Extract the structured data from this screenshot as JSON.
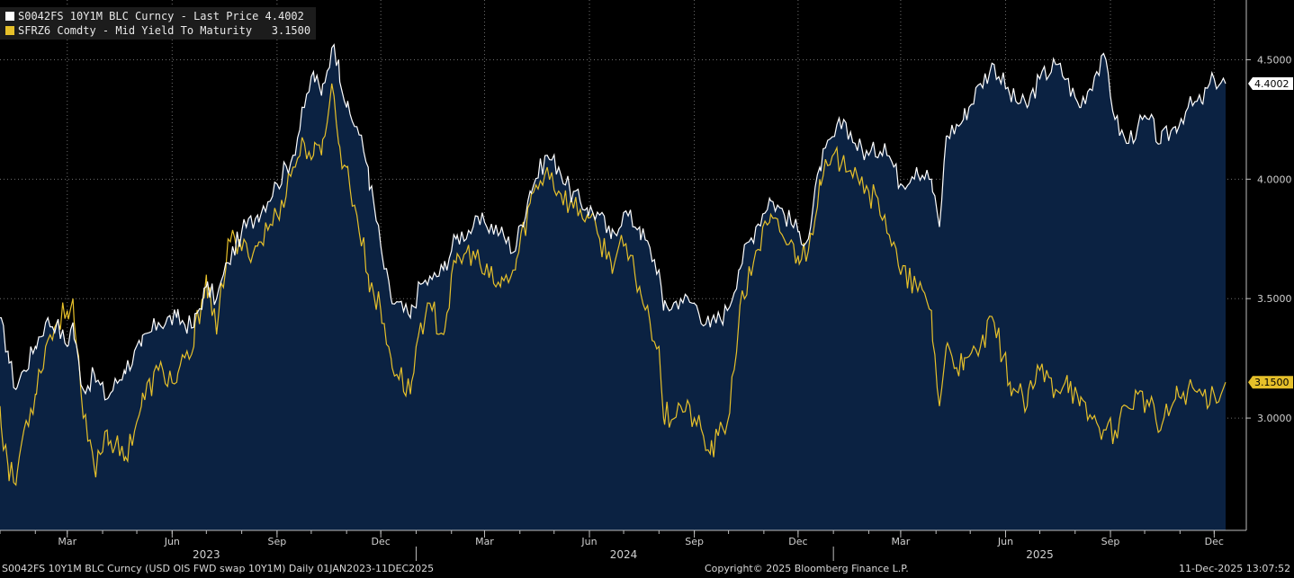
{
  "legend": {
    "series1": "S0042FS 10Y1M BLC Curncy - Last Price 4.4002",
    "series2": "SFRZ6 Comdty - Mid Yield To Maturity   3.1500"
  },
  "footer": {
    "left": "S0042FS 10Y1M BLC Curncy (USD OIS FWD swap 10Y1M) Daily 01JAN2023-11DEC2025",
    "center": "Copyright© 2025 Bloomberg Finance L.P.",
    "right": "11-Dec-2025 13:07:52"
  },
  "colors": {
    "white_series": "#ffffff",
    "yellow_series": "#e6c02a",
    "area": "#0b2242",
    "background": "#000000",
    "grid": "#6e6e6e"
  },
  "chart_data": {
    "type": "line",
    "ylim": [
      2.53,
      4.75
    ],
    "y_ticks": [
      "4.5000",
      "4.0000",
      "3.5000",
      "3.0000"
    ],
    "y_tick_values": [
      4.5,
      4.0,
      3.5,
      3.0
    ],
    "x_ticks": [
      {
        "label": "Mar",
        "date": "2023-03-01"
      },
      {
        "label": "Jun",
        "date": "2023-06-01"
      },
      {
        "label": "Sep",
        "date": "2023-09-01"
      },
      {
        "label": "Dec",
        "date": "2023-12-01"
      },
      {
        "label": "Mar",
        "date": "2024-03-01"
      },
      {
        "label": "Jun",
        "date": "2024-06-01"
      },
      {
        "label": "Sep",
        "date": "2024-09-01"
      },
      {
        "label": "Dec",
        "date": "2024-12-01"
      },
      {
        "label": "Mar",
        "date": "2025-03-01"
      },
      {
        "label": "Jun",
        "date": "2025-06-01"
      },
      {
        "label": "Sep",
        "date": "2025-09-01"
      },
      {
        "label": "Dec",
        "date": "2025-12-01"
      }
    ],
    "years": [
      {
        "label": "2023",
        "date": "2023-07-01"
      },
      {
        "label": "2024",
        "date": "2024-07-01"
      },
      {
        "label": "2025",
        "date": "2025-07-01"
      }
    ],
    "year_dividers": [
      "2024-01-01",
      "2025-01-01"
    ],
    "x_range": [
      "2023-01-01",
      "2025-12-11"
    ],
    "series": [
      {
        "name": "S0042FS 10Y1M BLC Curncy",
        "last_label": "4.4002",
        "points": [
          [
            "2023-01-01",
            3.42
          ],
          [
            "2023-01-08",
            3.28
          ],
          [
            "2023-01-15",
            3.12
          ],
          [
            "2023-01-22",
            3.2
          ],
          [
            "2023-02-01",
            3.3
          ],
          [
            "2023-02-10",
            3.4
          ],
          [
            "2023-02-20",
            3.4
          ],
          [
            "2023-03-01",
            3.3
          ],
          [
            "2023-03-06",
            3.4
          ],
          [
            "2023-03-15",
            3.12
          ],
          [
            "2023-03-25",
            3.18
          ],
          [
            "2023-04-05",
            3.08
          ],
          [
            "2023-04-20",
            3.2
          ],
          [
            "2023-05-05",
            3.3
          ],
          [
            "2023-05-20",
            3.4
          ],
          [
            "2023-06-05",
            3.42
          ],
          [
            "2023-06-20",
            3.38
          ],
          [
            "2023-07-01",
            3.55
          ],
          [
            "2023-07-10",
            3.5
          ],
          [
            "2023-07-20",
            3.65
          ],
          [
            "2023-08-01",
            3.78
          ],
          [
            "2023-08-15",
            3.85
          ],
          [
            "2023-09-01",
            3.98
          ],
          [
            "2023-09-15",
            4.1
          ],
          [
            "2023-09-25",
            4.3
          ],
          [
            "2023-10-03",
            4.45
          ],
          [
            "2023-10-10",
            4.35
          ],
          [
            "2023-10-19",
            4.55
          ],
          [
            "2023-10-25",
            4.5
          ],
          [
            "2023-11-01",
            4.3
          ],
          [
            "2023-11-10",
            4.22
          ],
          [
            "2023-11-20",
            4.05
          ],
          [
            "2023-12-01",
            3.72
          ],
          [
            "2023-12-10",
            3.5
          ],
          [
            "2023-12-27",
            3.42
          ],
          [
            "2024-01-05",
            3.56
          ],
          [
            "2024-01-15",
            3.58
          ],
          [
            "2024-01-25",
            3.62
          ],
          [
            "2024-02-05",
            3.75
          ],
          [
            "2024-02-20",
            3.8
          ],
          [
            "2024-03-01",
            3.82
          ],
          [
            "2024-03-15",
            3.78
          ],
          [
            "2024-03-28",
            3.7
          ],
          [
            "2024-04-10",
            3.95
          ],
          [
            "2024-04-25",
            4.1
          ],
          [
            "2024-05-05",
            4.05
          ],
          [
            "2024-05-15",
            3.95
          ],
          [
            "2024-05-30",
            3.88
          ],
          [
            "2024-06-10",
            3.85
          ],
          [
            "2024-06-20",
            3.75
          ],
          [
            "2024-07-01",
            3.86
          ],
          [
            "2024-07-15",
            3.8
          ],
          [
            "2024-08-01",
            3.62
          ],
          [
            "2024-08-05",
            3.45
          ],
          [
            "2024-08-20",
            3.5
          ],
          [
            "2024-09-01",
            3.48
          ],
          [
            "2024-09-15",
            3.38
          ],
          [
            "2024-09-30",
            3.45
          ],
          [
            "2024-10-10",
            3.62
          ],
          [
            "2024-10-25",
            3.8
          ],
          [
            "2024-11-06",
            3.92
          ],
          [
            "2024-11-15",
            3.88
          ],
          [
            "2024-12-01",
            3.78
          ],
          [
            "2024-12-10",
            3.75
          ],
          [
            "2024-12-20",
            4.05
          ],
          [
            "2025-01-10",
            4.25
          ],
          [
            "2025-01-20",
            4.15
          ],
          [
            "2025-02-01",
            4.1
          ],
          [
            "2025-02-15",
            4.15
          ],
          [
            "2025-03-01",
            3.98
          ],
          [
            "2025-03-15",
            4.05
          ],
          [
            "2025-03-28",
            4.0
          ],
          [
            "2025-04-04",
            3.8
          ],
          [
            "2025-04-10",
            4.18
          ],
          [
            "2025-04-25",
            4.25
          ],
          [
            "2025-05-10",
            4.4
          ],
          [
            "2025-05-22",
            4.48
          ],
          [
            "2025-06-05",
            4.35
          ],
          [
            "2025-06-20",
            4.3
          ],
          [
            "2025-07-01",
            4.42
          ],
          [
            "2025-07-15",
            4.48
          ],
          [
            "2025-07-25",
            4.42
          ],
          [
            "2025-08-05",
            4.3
          ],
          [
            "2025-08-20",
            4.45
          ],
          [
            "2025-08-28",
            4.5
          ],
          [
            "2025-09-05",
            4.25
          ],
          [
            "2025-09-15",
            4.15
          ],
          [
            "2025-09-25",
            4.22
          ],
          [
            "2025-10-05",
            4.25
          ],
          [
            "2025-10-15",
            4.15
          ],
          [
            "2025-10-28",
            4.22
          ],
          [
            "2025-11-08",
            4.3
          ],
          [
            "2025-11-20",
            4.32
          ],
          [
            "2025-12-01",
            4.42
          ],
          [
            "2025-12-11",
            4.4
          ]
        ]
      },
      {
        "name": "SFRZ6 Comdty",
        "last_label": "3.1500",
        "points": [
          [
            "2023-01-01",
            3.05
          ],
          [
            "2023-01-08",
            2.8
          ],
          [
            "2023-01-15",
            2.72
          ],
          [
            "2023-01-22",
            2.95
          ],
          [
            "2023-02-01",
            3.1
          ],
          [
            "2023-02-10",
            3.3
          ],
          [
            "2023-02-20",
            3.4
          ],
          [
            "2023-03-01",
            3.45
          ],
          [
            "2023-03-06",
            3.5
          ],
          [
            "2023-03-15",
            3.0
          ],
          [
            "2023-03-25",
            2.78
          ],
          [
            "2023-04-05",
            2.95
          ],
          [
            "2023-04-20",
            2.82
          ],
          [
            "2023-05-05",
            3.05
          ],
          [
            "2023-05-20",
            3.2
          ],
          [
            "2023-06-05",
            3.15
          ],
          [
            "2023-06-20",
            3.3
          ],
          [
            "2023-07-01",
            3.6
          ],
          [
            "2023-07-10",
            3.35
          ],
          [
            "2023-07-20",
            3.75
          ],
          [
            "2023-08-01",
            3.7
          ],
          [
            "2023-08-15",
            3.72
          ],
          [
            "2023-09-01",
            3.85
          ],
          [
            "2023-09-15",
            4.05
          ],
          [
            "2023-09-25",
            4.15
          ],
          [
            "2023-10-03",
            4.1
          ],
          [
            "2023-10-10",
            4.1
          ],
          [
            "2023-10-19",
            4.4
          ],
          [
            "2023-10-25",
            4.15
          ],
          [
            "2023-11-01",
            4.05
          ],
          [
            "2023-11-10",
            3.85
          ],
          [
            "2023-11-20",
            3.6
          ],
          [
            "2023-12-01",
            3.45
          ],
          [
            "2023-12-10",
            3.25
          ],
          [
            "2023-12-27",
            3.1
          ],
          [
            "2024-01-05",
            3.4
          ],
          [
            "2024-01-15",
            3.45
          ],
          [
            "2024-01-25",
            3.35
          ],
          [
            "2024-02-05",
            3.65
          ],
          [
            "2024-02-20",
            3.7
          ],
          [
            "2024-03-01",
            3.6
          ],
          [
            "2024-03-15",
            3.55
          ],
          [
            "2024-03-28",
            3.62
          ],
          [
            "2024-04-10",
            3.9
          ],
          [
            "2024-04-25",
            4.05
          ],
          [
            "2024-05-05",
            3.95
          ],
          [
            "2024-05-15",
            3.9
          ],
          [
            "2024-05-30",
            3.85
          ],
          [
            "2024-06-10",
            3.75
          ],
          [
            "2024-06-20",
            3.65
          ],
          [
            "2024-07-01",
            3.72
          ],
          [
            "2024-07-15",
            3.55
          ],
          [
            "2024-08-01",
            3.3
          ],
          [
            "2024-08-05",
            3.0
          ],
          [
            "2024-08-20",
            3.05
          ],
          [
            "2024-09-01",
            3.0
          ],
          [
            "2024-09-15",
            2.85
          ],
          [
            "2024-09-30",
            2.98
          ],
          [
            "2024-10-10",
            3.4
          ],
          [
            "2024-10-25",
            3.7
          ],
          [
            "2024-11-06",
            3.82
          ],
          [
            "2024-11-15",
            3.78
          ],
          [
            "2024-12-01",
            3.68
          ],
          [
            "2024-12-10",
            3.7
          ],
          [
            "2024-12-20",
            4.0
          ],
          [
            "2025-01-10",
            4.1
          ],
          [
            "2025-01-20",
            4.05
          ],
          [
            "2025-02-01",
            3.95
          ],
          [
            "2025-02-15",
            3.85
          ],
          [
            "2025-03-01",
            3.6
          ],
          [
            "2025-03-15",
            3.55
          ],
          [
            "2025-03-28",
            3.45
          ],
          [
            "2025-04-04",
            3.05
          ],
          [
            "2025-04-10",
            3.3
          ],
          [
            "2025-04-25",
            3.2
          ],
          [
            "2025-05-10",
            3.3
          ],
          [
            "2025-05-22",
            3.4
          ],
          [
            "2025-06-05",
            3.15
          ],
          [
            "2025-06-20",
            3.05
          ],
          [
            "2025-07-01",
            3.2
          ],
          [
            "2025-07-15",
            3.12
          ],
          [
            "2025-07-25",
            3.18
          ],
          [
            "2025-08-05",
            3.05
          ],
          [
            "2025-08-20",
            2.98
          ],
          [
            "2025-08-28",
            2.95
          ],
          [
            "2025-09-05",
            2.95
          ],
          [
            "2025-09-15",
            3.05
          ],
          [
            "2025-09-25",
            3.1
          ],
          [
            "2025-10-05",
            3.05
          ],
          [
            "2025-10-15",
            2.95
          ],
          [
            "2025-10-28",
            3.08
          ],
          [
            "2025-11-08",
            3.12
          ],
          [
            "2025-11-20",
            3.1
          ],
          [
            "2025-12-01",
            3.1
          ],
          [
            "2025-12-11",
            3.15
          ]
        ]
      }
    ]
  }
}
